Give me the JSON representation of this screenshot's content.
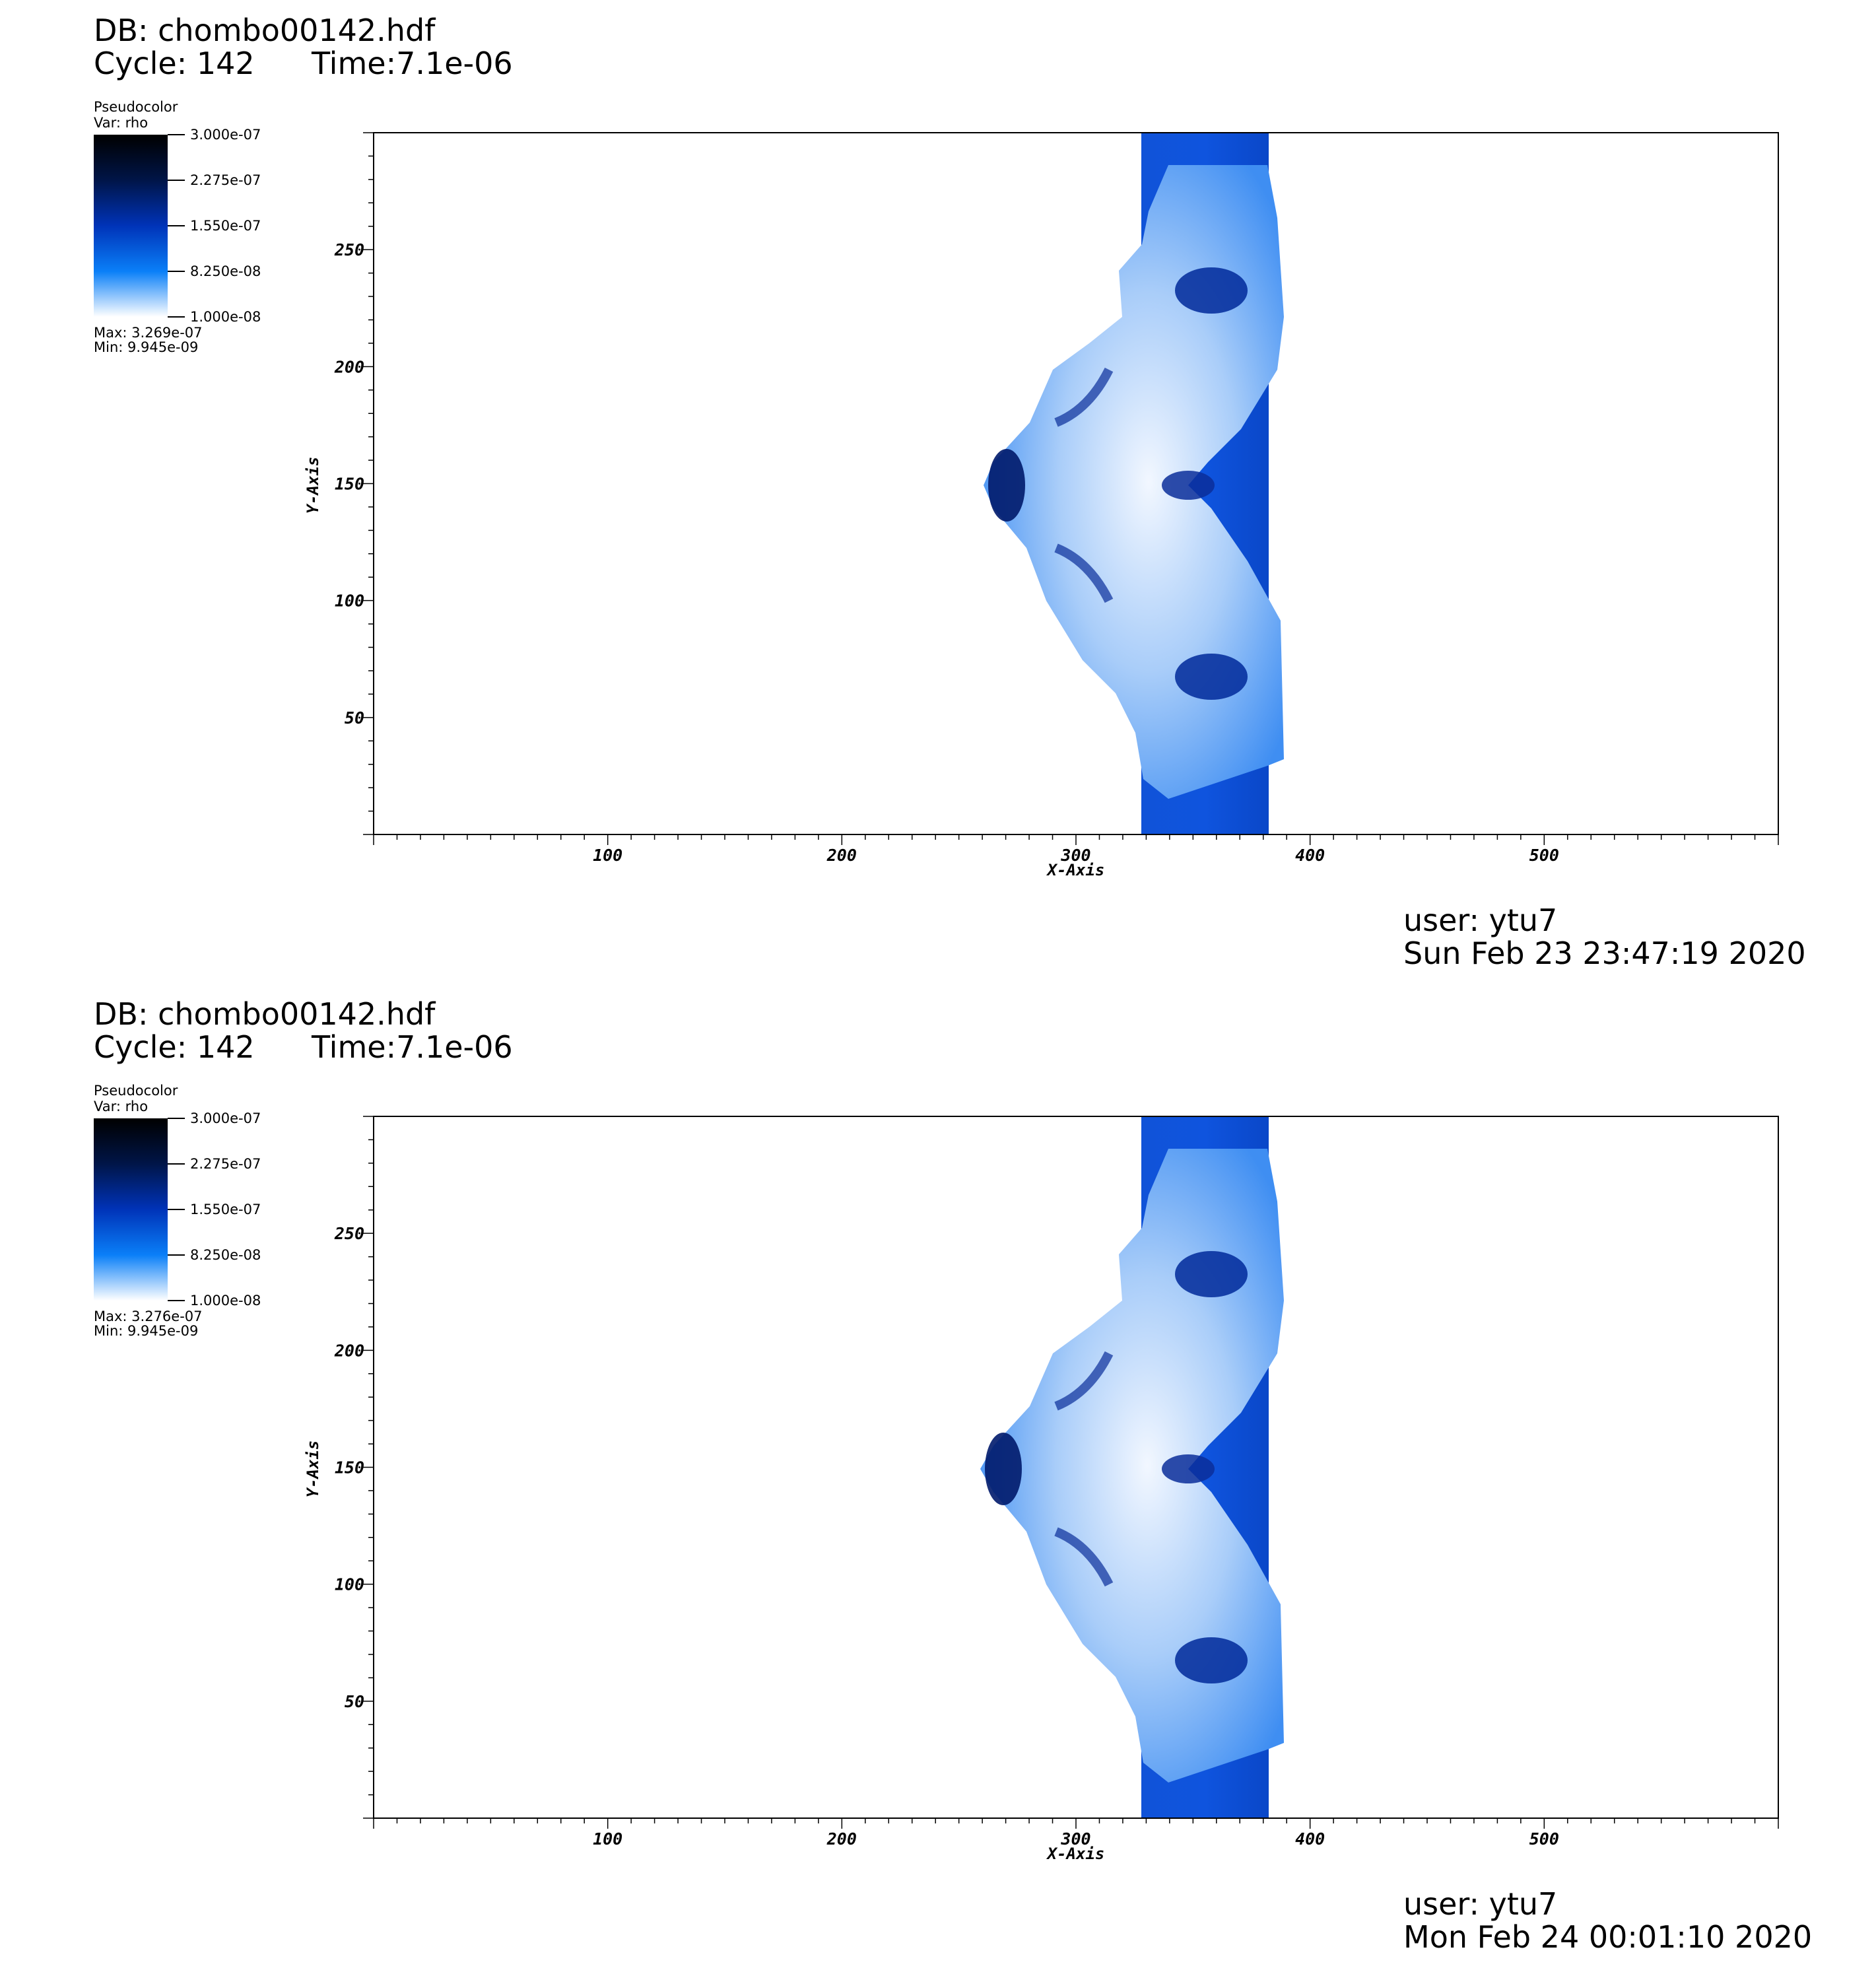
{
  "panels": [
    {
      "db": "DB: chombo00142.hdf",
      "cycle": "Cycle: 142",
      "time": "Time:7.1e-06",
      "legend": {
        "plot_name": "Pseudocolor",
        "var": "Var: rho",
        "ticks": [
          "3.000e-07",
          "2.275e-07",
          "1.550e-07",
          "8.250e-08",
          "1.000e-08"
        ],
        "max": "Max:  3.269e-07",
        "min": "Min:  9.945e-09"
      },
      "user": "user: ytu7",
      "date": "Sun Feb 23 23:47:19 2020"
    },
    {
      "db": "DB: chombo00142.hdf",
      "cycle": "Cycle: 142",
      "time": "Time:7.1e-06",
      "legend": {
        "plot_name": "Pseudocolor",
        "var": "Var: rho",
        "ticks": [
          "3.000e-07",
          "2.275e-07",
          "1.550e-07",
          "8.250e-08",
          "1.000e-08"
        ],
        "max": "Max:  3.276e-07",
        "min": "Min:  9.945e-09"
      },
      "user": "user: ytu7",
      "date": "Mon Feb 24 00:01:10 2020"
    }
  ],
  "chart_data": [
    {
      "type": "heatmap",
      "variable": "rho",
      "xlabel": "X-Axis",
      "ylabel": "Y-Axis",
      "xlim": [
        0,
        600
      ],
      "ylim": [
        0,
        300
      ],
      "x_ticks": [
        100,
        200,
        300,
        400,
        500
      ],
      "y_ticks": [
        50,
        100,
        150,
        200,
        250
      ],
      "color_range": [
        1e-08,
        3e-07
      ],
      "colors": {
        "high": "#000000",
        "mid": "#0033b8",
        "low": "#0a7ff8",
        "min": "#ffffff"
      }
    },
    {
      "type": "heatmap",
      "variable": "rho",
      "xlabel": "X-Axis",
      "ylabel": "Y-Axis",
      "xlim": [
        0,
        600
      ],
      "ylim": [
        0,
        300
      ],
      "x_ticks": [
        100,
        200,
        300,
        400,
        500
      ],
      "y_ticks": [
        50,
        100,
        150,
        200,
        250
      ],
      "color_range": [
        1e-08,
        3e-07
      ],
      "colors": {
        "high": "#000000",
        "mid": "#0033b8",
        "low": "#0a7ff8",
        "min": "#ffffff"
      }
    }
  ]
}
